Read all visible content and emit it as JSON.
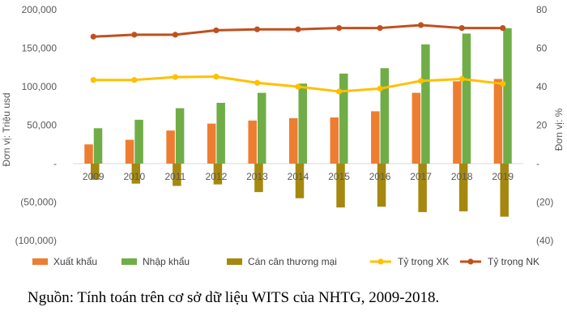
{
  "chart_data": {
    "type": "bar",
    "categories": [
      "2009",
      "2010",
      "2011",
      "2012",
      "2013",
      "2014",
      "2015",
      "2016",
      "2017",
      "2018",
      "2019"
    ],
    "series": [
      {
        "name": "Xuất khẩu",
        "type": "bar",
        "axis": "left",
        "color": "#ED7D31",
        "values": [
          25000,
          31000,
          43000,
          52000,
          56000,
          59000,
          60000,
          68000,
          92000,
          107000,
          110000
        ]
      },
      {
        "name": "Nhập khẩu",
        "type": "bar",
        "axis": "left",
        "color": "#70AD47",
        "values": [
          46000,
          57000,
          72000,
          79000,
          92000,
          104000,
          117000,
          124000,
          155000,
          169000,
          176000
        ]
      },
      {
        "name": "Cán cân thương mại",
        "type": "bar",
        "axis": "left",
        "color": "#A5880F",
        "values": [
          -21000,
          -26000,
          -29000,
          -27000,
          -37000,
          -45000,
          -57000,
          -56000,
          -63000,
          -62000,
          -69000
        ]
      },
      {
        "name": "Tỷ trọng XK",
        "type": "line",
        "axis": "right",
        "color": "#FFC000",
        "values": [
          43.5,
          43.5,
          45,
          45.2,
          42,
          40,
          37.5,
          39,
          43,
          44,
          41.5
        ]
      },
      {
        "name": "Tỷ trọng NK",
        "type": "line",
        "axis": "right",
        "color": "#C0501E",
        "values": [
          66,
          67,
          67,
          69.3,
          69.8,
          69.8,
          70.5,
          70.5,
          72,
          70.5,
          70.5
        ]
      }
    ],
    "ylabel_left": "Đơn vị: Triệu usd",
    "ylabel_right": "Đơn vị: %",
    "ylim_left": [
      -100000,
      200000
    ],
    "ylim_right": [
      -40,
      80
    ],
    "yticks_left": [
      "200,000",
      "150,000",
      "100,000",
      "50,000",
      "-",
      "(50,000)",
      "(100,000)"
    ],
    "yticks_right": [
      "80",
      "60",
      "40",
      "20",
      "-",
      "(20)",
      "(40)"
    ],
    "grid": false,
    "legend_position": "bottom"
  },
  "source_note": "Nguồn: Tính toán trên cơ sở dữ liệu WITS của NHTG, 2009-2018."
}
